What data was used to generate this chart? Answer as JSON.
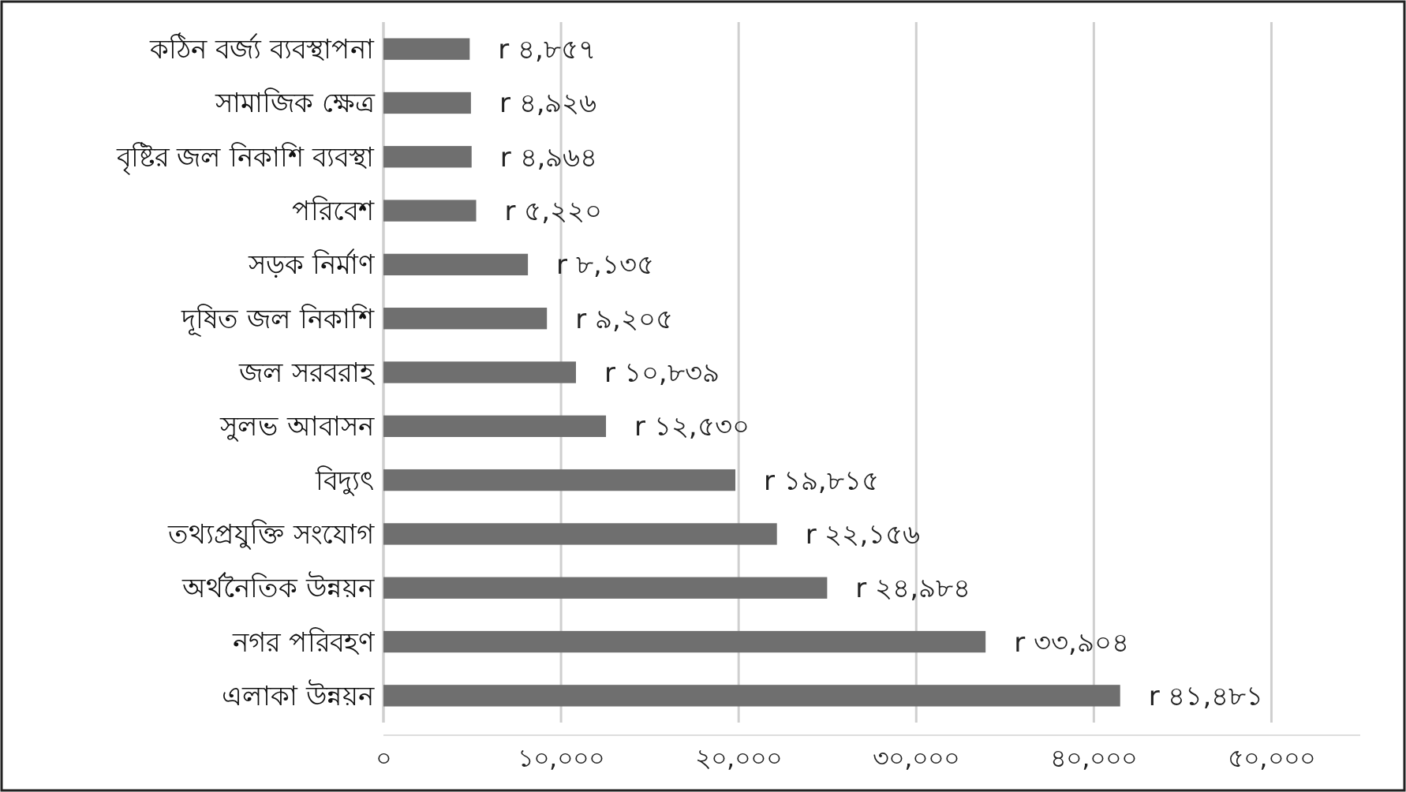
{
  "chart_data": {
    "type": "bar",
    "orientation": "horizontal",
    "categories": [
      "কঠিন বর্জ্য ব্যবস্থাপনা",
      "সামাজিক ক্ষেত্র",
      "বৃষ্টির জল নিকাশি ব্যবস্থা",
      "পরিবেশ",
      "সড়ক নির্মাণ",
      "দূষিত জল নিকাশি",
      "জল সরবরাহ",
      "সুলভ আবাসন",
      "বিদ্যুৎ",
      "তথ্যপ্রযুক্তি সংযোগ",
      "অর্থনৈতিক উন্নয়ন",
      "নগর পরিবহণ",
      "এলাকা উন্নয়ন"
    ],
    "values": [
      4857,
      4926,
      4964,
      5220,
      8135,
      9205,
      10839,
      12530,
      19815,
      22156,
      24984,
      33904,
      41481
    ],
    "value_labels": [
      "r ৪,৮৫৭",
      "r ৪,৯২৬",
      "r ৪,৯৬৪",
      "r ৫,২২০",
      "r ৮,১৩৫",
      "r ৯,২০৫",
      "r ১০,৮৩৯",
      "r ১২,৫৩০",
      "r ১৯,৮১৫",
      "r ২২,১৫৬",
      "r ২৪,৯৮৪",
      "r ৩৩,৯০৪",
      "r ৪১,৪৮১"
    ],
    "color": "#6f6f6f",
    "xlim": [
      0,
      55000
    ],
    "xticks": [
      {
        "value": 0,
        "label": "০"
      },
      {
        "value": 10000,
        "label": "১০,০০০"
      },
      {
        "value": 20000,
        "label": "২০,০০০"
      },
      {
        "value": 30000,
        "label": "৩০,০০০"
      },
      {
        "value": 40000,
        "label": "৪০,০০০"
      },
      {
        "value": 50000,
        "label": "৫০,০০০"
      }
    ],
    "grid": "x"
  }
}
